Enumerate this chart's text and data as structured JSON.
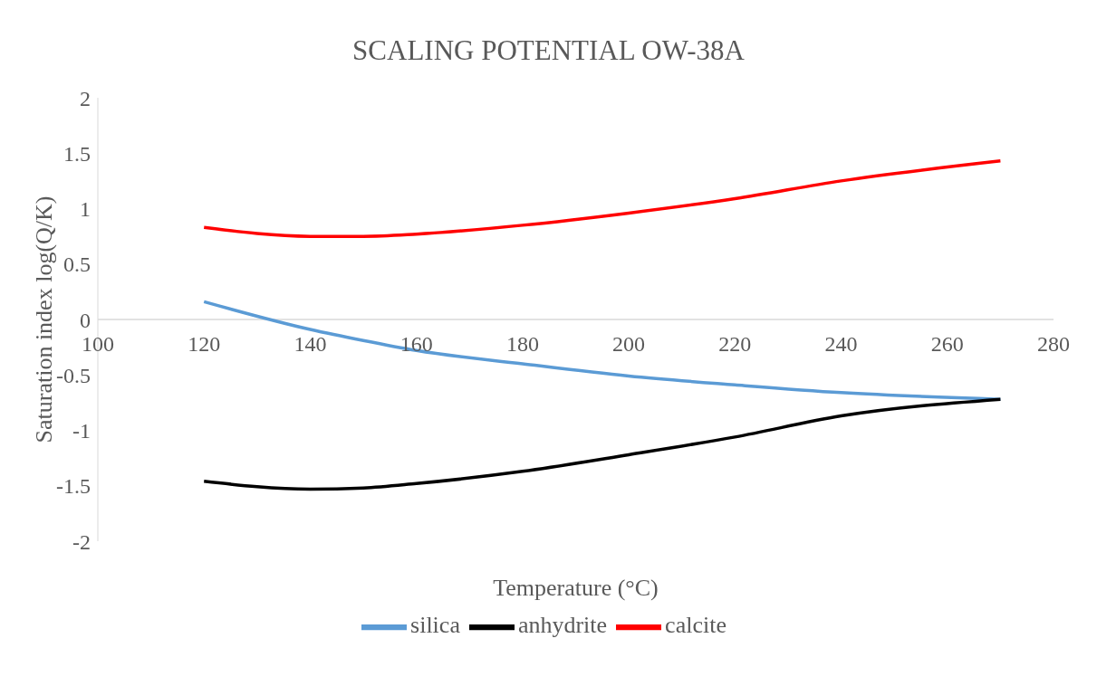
{
  "chart_data": {
    "type": "line",
    "title": "SCALING POTENTIAL OW-38A",
    "xlabel": "Temperature (°C)",
    "ylabel": "Saturation index log(Q/K)",
    "x": [
      120,
      140,
      150,
      160,
      180,
      200,
      220,
      240,
      270
    ],
    "series": [
      {
        "name": "silica",
        "color": "#5b9bd5",
        "values": [
          0.16,
          -0.09,
          -0.19,
          -0.28,
          -0.4,
          -0.51,
          -0.59,
          -0.66,
          -0.72
        ]
      },
      {
        "name": "anhydrite",
        "color": "#000000",
        "values": [
          -1.46,
          -1.53,
          -1.52,
          -1.48,
          -1.37,
          -1.22,
          -1.06,
          -0.87,
          -0.72
        ]
      },
      {
        "name": "calcite",
        "color": "#ff0000",
        "values": [
          0.83,
          0.75,
          0.75,
          0.77,
          0.85,
          0.96,
          1.09,
          1.25,
          1.43
        ]
      }
    ],
    "xlim": [
      100,
      280
    ],
    "xticks": [
      100,
      120,
      140,
      160,
      180,
      200,
      220,
      240,
      260,
      280
    ],
    "ylim": [
      -2,
      2
    ],
    "yticks": [
      -2,
      -1.5,
      -1,
      -0.5,
      0,
      0.5,
      1,
      1.5,
      2
    ],
    "grid": false,
    "legend": "bottom",
    "marker": "none",
    "line_style": "solid"
  }
}
